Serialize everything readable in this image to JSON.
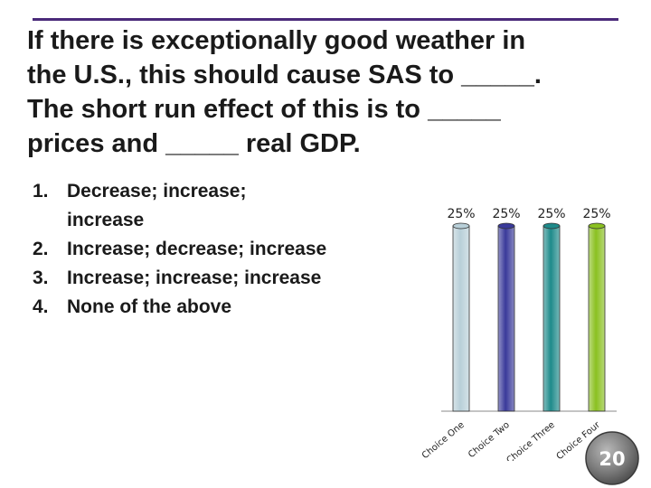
{
  "question": {
    "lines": [
      "If there is exceptionally good weather in",
      "the U.S., this should cause SAS to _____.",
      "The short run effect of this is to _____",
      "prices and _____ real GDP."
    ]
  },
  "answers": [
    {
      "num": "1.",
      "text": "Decrease; increase; increase"
    },
    {
      "num": "2.",
      "text": "Increase; decrease; increase"
    },
    {
      "num": "3.",
      "text": "Increase; increase; increase"
    },
    {
      "num": "4.",
      "text": "None of the above"
    }
  ],
  "timer": {
    "value": "20"
  },
  "chart_data": {
    "type": "bar",
    "categories": [
      "Choice One",
      "Choice Two",
      "Choice Three",
      "Choice Four"
    ],
    "values": [
      25,
      25,
      25,
      25
    ],
    "value_labels": [
      "25%",
      "25%",
      "25%",
      "25%"
    ],
    "colors": [
      "#b8cfd8",
      "#3a3a9a",
      "#1e8a8a",
      "#8ac020"
    ],
    "ylim": [
      0,
      25
    ],
    "grid": false,
    "legend": "none"
  }
}
